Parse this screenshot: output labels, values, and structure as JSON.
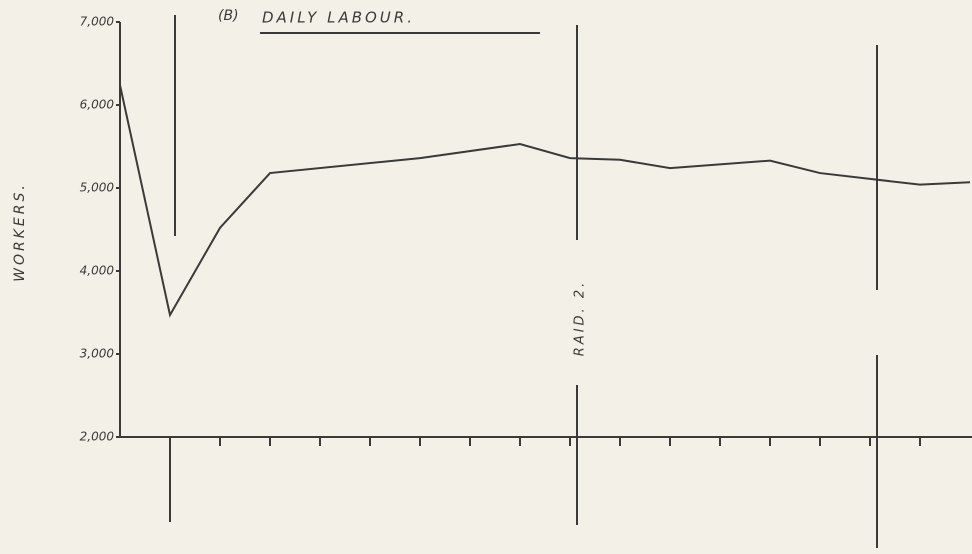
{
  "chart_data": {
    "type": "line",
    "panel_label": "(B)",
    "title": "DAILY LABOUR.",
    "ylabel": "WORKERS.",
    "annotation": "RAID. 2.",
    "x": [
      0,
      1,
      2,
      3,
      6,
      8,
      9,
      10,
      11,
      13,
      14,
      15,
      16,
      17
    ],
    "series": [
      {
        "name": "Daily labour",
        "color": "#3a3a38",
        "values": [
          6240,
          3470,
          4520,
          5180,
          5360,
          5530,
          5360,
          5340,
          5240,
          5330,
          5180,
          5110,
          5040,
          5070
        ]
      }
    ],
    "xlim": [
      0,
      17
    ],
    "xticks": [
      1,
      2,
      3,
      4,
      5,
      6,
      7,
      8,
      9,
      10,
      11,
      12,
      13,
      14,
      15,
      16
    ],
    "ylim": [
      2000,
      7000
    ],
    "yticks": [
      {
        "value": 2000,
        "label": "2,000"
      },
      {
        "value": 3000,
        "label": "3,000"
      },
      {
        "value": 4000,
        "label": "4,000"
      },
      {
        "value": 5000,
        "label": "5,000"
      },
      {
        "value": 6000,
        "label": "6,000"
      },
      {
        "value": 7000,
        "label": "7,000"
      }
    ],
    "grid": false
  }
}
